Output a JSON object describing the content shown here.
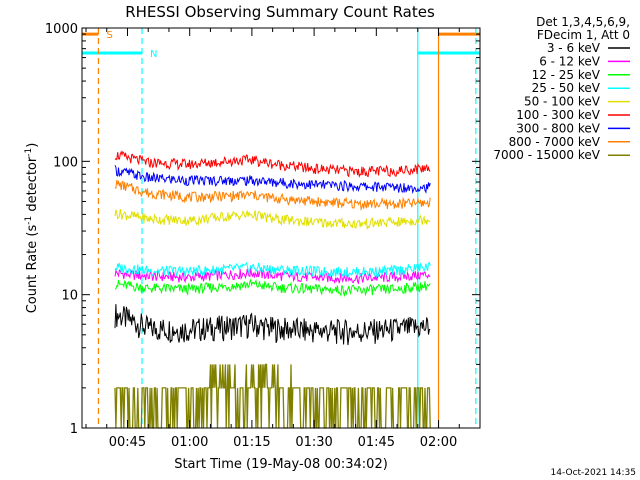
{
  "chart_data": {
    "type": "line",
    "title": "RHESSI Observing Summary Count Rates",
    "xlabel": "Start Time (19-May-08 00:34:02)",
    "ylabel": "Count Rate (s",
    "ylabel_sup": "-1",
    "ylabel_mid": " detector",
    "ylabel_end": ")",
    "y_scale": "log",
    "ylim": [
      1,
      1000
    ],
    "xlim": [
      "00:34:02",
      "02:10:00"
    ],
    "y_ticks": [
      {
        "value": 1,
        "label": "1"
      },
      {
        "value": 10,
        "label": "10"
      },
      {
        "value": 100,
        "label": "100"
      },
      {
        "value": 1000,
        "label": "1000"
      }
    ],
    "x_ticks": [
      {
        "value": "00:45",
        "label": "00:45"
      },
      {
        "value": "01:00",
        "label": "01:00"
      },
      {
        "value": "01:15",
        "label": "01:15"
      },
      {
        "value": "01:30",
        "label": "01:30"
      },
      {
        "value": "01:45",
        "label": "01:45"
      },
      {
        "value": "02:00",
        "label": "02:00"
      }
    ],
    "legend_header": [
      "Det 1,3,4,5,6,9,",
      "FDecim 1, Att 0"
    ],
    "legend_placement": "right",
    "series": [
      {
        "name": "3 - 6 keV",
        "color": "#000000",
        "x": [
          "00:42",
          "00:50",
          "01:00",
          "01:10",
          "01:15",
          "01:20",
          "01:30",
          "01:40",
          "01:50",
          "01:58"
        ],
        "y": [
          7.2,
          5.6,
          5.5,
          5.8,
          6.0,
          5.6,
          5.4,
          5.3,
          5.5,
          5.8
        ]
      },
      {
        "name": "6 - 12 keV",
        "color": "#ff00ff",
        "x": [
          "00:42",
          "00:50",
          "01:00",
          "01:10",
          "01:15",
          "01:20",
          "01:30",
          "01:40",
          "01:50",
          "01:58"
        ],
        "y": [
          14.5,
          13.8,
          13.5,
          14.2,
          14.6,
          14.0,
          13.5,
          13.3,
          13.6,
          14.2
        ]
      },
      {
        "name": "12 - 25 keV",
        "color": "#00ff00",
        "x": [
          "00:42",
          "00:50",
          "01:00",
          "01:10",
          "01:15",
          "01:20",
          "01:30",
          "01:40",
          "01:50",
          "01:58"
        ],
        "y": [
          12.0,
          11.2,
          11.0,
          11.6,
          12.0,
          11.4,
          11.0,
          10.8,
          11.0,
          11.8
        ]
      },
      {
        "name": "25 - 50 keV",
        "color": "#00ffff",
        "x": [
          "00:42",
          "00:50",
          "01:00",
          "01:10",
          "01:15",
          "01:20",
          "01:30",
          "01:40",
          "01:50",
          "01:58"
        ],
        "y": [
          16.0,
          15.2,
          15.0,
          15.6,
          16.0,
          15.5,
          15.0,
          14.8,
          15.2,
          16.2
        ]
      },
      {
        "name": "50 - 100 keV",
        "color": "#e0e000",
        "x": [
          "00:42",
          "00:50",
          "01:00",
          "01:10",
          "01:15",
          "01:20",
          "01:30",
          "01:40",
          "01:50",
          "01:58"
        ],
        "y": [
          41,
          37,
          36,
          39,
          40,
          37,
          35,
          34,
          35,
          37
        ]
      },
      {
        "name": "100 - 300 keV",
        "color": "#ff0000",
        "x": [
          "00:42",
          "00:50",
          "01:00",
          "01:10",
          "01:15",
          "01:20",
          "01:30",
          "01:40",
          "01:50",
          "01:58"
        ],
        "y": [
          112,
          98,
          95,
          101,
          103,
          96,
          88,
          84,
          85,
          90
        ]
      },
      {
        "name": "300 - 800 keV",
        "color": "#0000ff",
        "x": [
          "00:42",
          "00:50",
          "01:00",
          "01:10",
          "01:15",
          "01:20",
          "01:30",
          "01:40",
          "01:50",
          "01:58"
        ],
        "y": [
          86,
          75,
          72,
          72,
          72,
          70,
          67,
          65,
          64,
          64
        ]
      },
      {
        "name": "800 - 7000 keV",
        "color": "#ff8000",
        "x": [
          "00:42",
          "00:50",
          "01:00",
          "01:10",
          "01:15",
          "01:20",
          "01:30",
          "01:40",
          "01:50",
          "01:58"
        ],
        "y": [
          68,
          58,
          54,
          55,
          56,
          53,
          50,
          48,
          48,
          49
        ]
      },
      {
        "name": "7000 - 15000 keV",
        "color": "#808000",
        "x": [
          "00:42",
          "00:50",
          "01:00",
          "01:10",
          "01:15",
          "01:20",
          "01:30",
          "01:40",
          "01:50",
          "01:58"
        ],
        "y": [
          1.6,
          1.6,
          1.7,
          2.2,
          2.0,
          1.7,
          1.6,
          1.6,
          1.6,
          1.7
        ]
      }
    ],
    "flag_bars": [
      {
        "label": "S",
        "color": "#ff8000",
        "y": 900,
        "segments": [
          [
            "00:34:02",
            "00:38:00"
          ],
          [
            "02:00:00",
            "02:10:00"
          ]
        ]
      },
      {
        "label": "N",
        "color": "#00ffff",
        "y": 650,
        "segments": [
          [
            "00:34:02",
            "00:48:30"
          ],
          [
            "01:55:00",
            "02:10:00"
          ]
        ]
      }
    ],
    "vlines": [
      {
        "x": "00:38:00",
        "color": "#ff8000",
        "style": "dashed"
      },
      {
        "x": "00:48:30",
        "color": "#00ffff",
        "style": "dashed"
      },
      {
        "x": "01:55:00",
        "color": "#00ffff",
        "style": "solid"
      },
      {
        "x": "02:00:00",
        "color": "#ff8000",
        "style": "solid"
      },
      {
        "x": "02:09:00",
        "color": "#00ffff",
        "style": "dashed"
      }
    ],
    "footer_timestamp": "14-Oct-2021 14:35"
  }
}
